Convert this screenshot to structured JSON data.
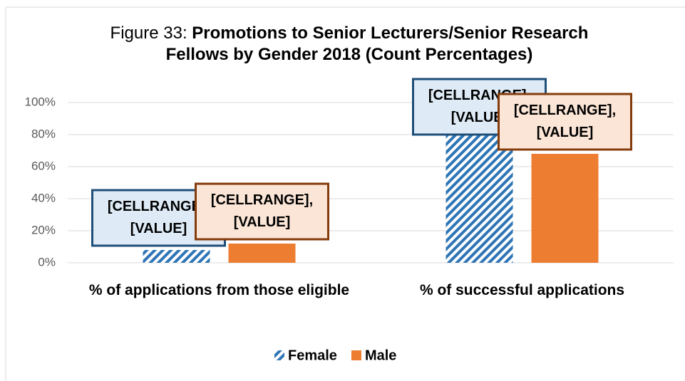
{
  "chart_data": {
    "type": "bar",
    "title_prefix": "Figure 33:",
    "title": "Promotions to Senior Lecturers/Senior Research Fellows by Gender 2018 (Count Percentages)",
    "categories": [
      "% of applications from those eligible",
      "% of successful applications"
    ],
    "series": [
      {
        "name": "Female",
        "color": "#2e75b6",
        "pattern": "hatch",
        "values": [
          8,
          88
        ],
        "data_labels": [
          "[CELLRANGE], [VALUE]",
          "[CELLRANGE], [VALUE]"
        ],
        "label_fill": "#deebf7",
        "label_stroke": "#1f4e79"
      },
      {
        "name": "Male",
        "color": "#ed7d31",
        "pattern": "solid",
        "values": [
          12,
          68
        ],
        "data_labels": [
          "[CELLRANGE], [VALUE]",
          "[CELLRANGE], [VALUE]"
        ],
        "label_fill": "#fbe5d6",
        "label_stroke": "#843c0c"
      }
    ],
    "ylim": [
      0,
      100
    ],
    "yticks": [
      {
        "value": 0,
        "label": "0%"
      },
      {
        "value": 20,
        "label": "20%"
      },
      {
        "value": 40,
        "label": "40%"
      },
      {
        "value": 60,
        "label": "60%"
      },
      {
        "value": 80,
        "label": "80%"
      },
      {
        "value": 100,
        "label": "100%"
      }
    ],
    "grid": true,
    "legend": "bottom"
  }
}
